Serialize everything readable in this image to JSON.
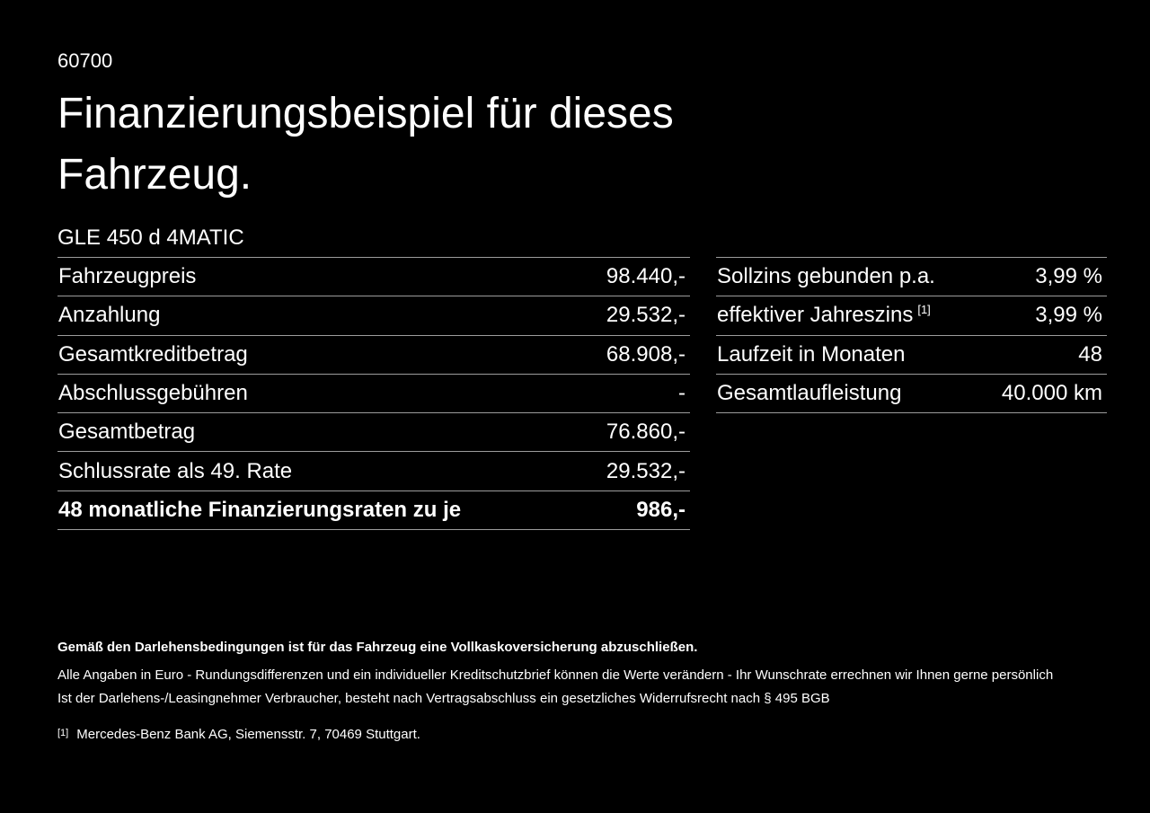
{
  "page": {
    "code": "60700",
    "title_line1": "Finanzierungsbeispiel für dieses",
    "title_line2": "Fahrzeug.",
    "vehicle_name": "GLE 450 d 4MATIC"
  },
  "finance_table": {
    "rows": [
      {
        "label": "Fahrzeugpreis",
        "value": "98.440,-",
        "bold": false
      },
      {
        "label": "Anzahlung",
        "value": "29.532,-",
        "bold": false
      },
      {
        "label": "Gesamtkreditbetrag",
        "value": "68.908,-",
        "bold": false
      },
      {
        "label": "Abschlussgebühren",
        "value": "-",
        "bold": false
      },
      {
        "label": "Gesamtbetrag",
        "value": "76.860,-",
        "bold": false
      },
      {
        "label": "Schlussrate als 49. Rate",
        "value": "29.532,-",
        "bold": false
      },
      {
        "label": "48 monatliche Finanzierungsraten zu je",
        "value": "986,-",
        "bold": true
      }
    ]
  },
  "conditions_table": {
    "rows": [
      {
        "label": "Sollzins gebunden p.a.",
        "value": "3,99 %",
        "bold": false
      },
      {
        "label": "effektiver Jahreszins",
        "label_sup": "[1]",
        "value": "3,99 %",
        "bold": false
      },
      {
        "label": "Laufzeit in Monaten",
        "value": "48",
        "bold": false
      },
      {
        "label": "Gesamtlaufleistung",
        "value": "40.000 km",
        "bold": false
      }
    ]
  },
  "footer": {
    "bold_note": "Gemäß den Darlehensbedingungen ist für das Fahrzeug eine Vollkaskoversicherung abzuschließen.",
    "note_line1": "Alle Angaben in Euro - Rundungsdifferenzen und ein individueller Kreditschutzbrief können die Werte verändern - Ihr Wunschrate errechnen wir Ihnen gerne persönlich",
    "note_line2": "Ist der Darlehens-/Leasingnehmer Verbraucher, besteht nach Vertragsabschluss ein gesetzliches Widerrufsrecht nach § 495 BGB",
    "footnote_marker": "[1]",
    "footnote_text": "Mercedes-Benz Bank AG, Siemensstr. 7, 70469 Stuttgart."
  },
  "colors": {
    "background": "#000000",
    "text": "#ffffff",
    "divider": "#9c9c9c"
  }
}
